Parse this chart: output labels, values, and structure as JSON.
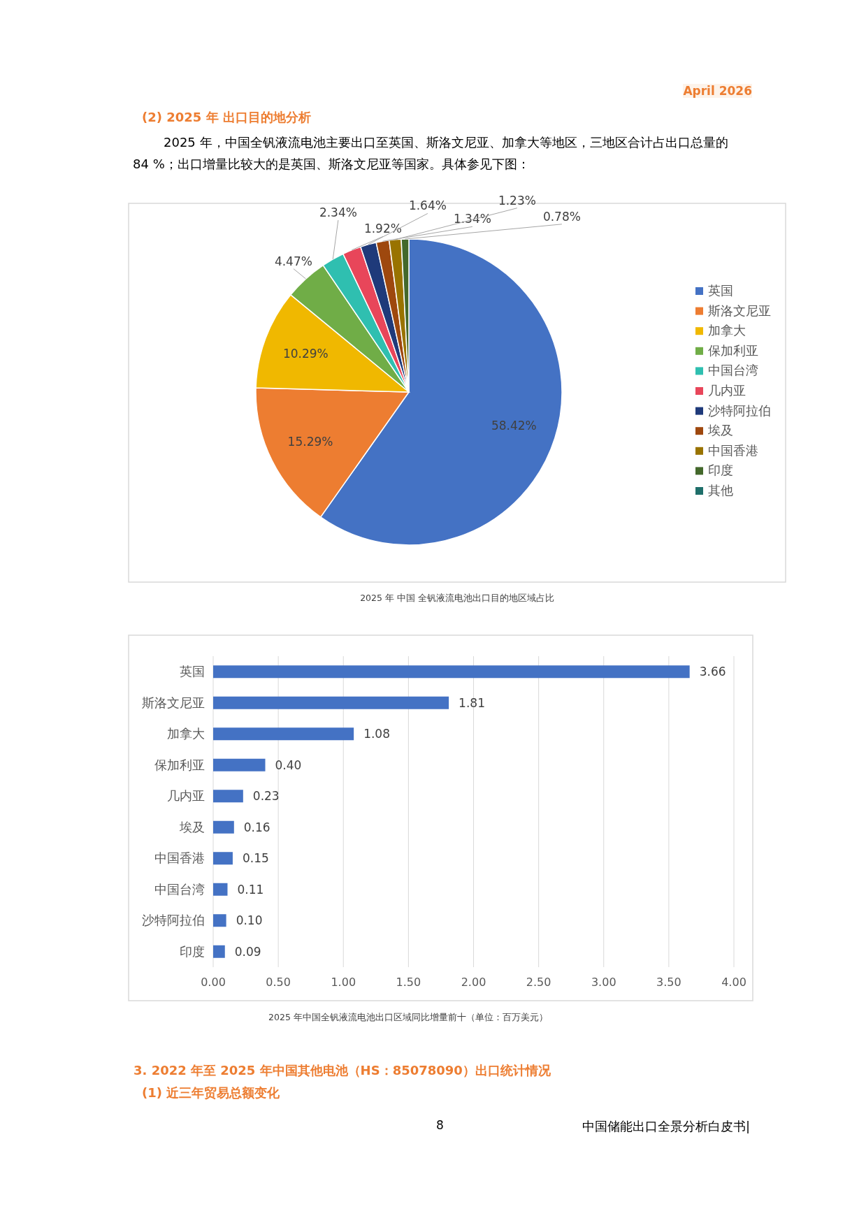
{
  "chart_data": [
    {
      "type": "pie",
      "title": "2025 年 中国 全钒液流电池出口目的地区域占比",
      "legend": "right",
      "annotations": [
        "April 2026",
        "(2) 2025 年 出口目的地分析",
        "2025 年，中国全钒液流电池主要出口至英国、斯洛文尼亚、加拿大等地区，三地区合计占出口总量的 84 %；出口增量比较大的是英国、斯洛文尼亚等国家。具体参见下图："
      ],
      "categories": [
        "英国",
        "斯洛文尼亚",
        "加拿大",
        "保加利亚",
        "中国台湾",
        "几内亚",
        "沙特阿拉伯",
        "埃及",
        "中国香港",
        "印度",
        "其他"
      ],
      "values": [
        58.42,
        15.29,
        10.29,
        4.47,
        2.34,
        1.92,
        1.64,
        1.34,
        1.23,
        0.78,
        null
      ],
      "value_labels": [
        "58.42%",
        "15.29%",
        "10.29%",
        "4.47%",
        "2.34%",
        "1.92%",
        "1.64%",
        "1.34%",
        "1.23%",
        "0.78%",
        null
      ],
      "colors": [
        "#4472c4",
        "#ed7d31",
        "#f0b800",
        "#70ad47",
        "#2fbfb0",
        "#e8465a",
        "#1f3a7a",
        "#9e480e",
        "#997300",
        "#43682b",
        "#1f6f6a"
      ]
    },
    {
      "type": "bar",
      "orientation": "horizontal",
      "title": "2025 年中国全钒液流电池出口区域同比增量前十（单位：百万美元）",
      "annotations": [
        "3. 2022 年至 2025 年中国其他电池（HS：85078090）出口统计情况",
        "(1) 近三年贸易总额变化",
        "8",
        "中国储能出口全景分析白皮书|"
      ],
      "categories": [
        "英国",
        "斯洛文尼亚",
        "加拿大",
        "保加利亚",
        "几内亚",
        "埃及",
        "中国香港",
        "中国台湾",
        "沙特阿拉伯",
        "印度"
      ],
      "values": [
        3.66,
        1.81,
        1.08,
        0.4,
        0.23,
        0.16,
        0.15,
        0.11,
        0.1,
        0.09
      ],
      "value_labels": [
        "3.66",
        "1.81",
        "1.08",
        "0.40",
        "0.23",
        "0.16",
        "0.15",
        "0.11",
        "0.10",
        "0.09"
      ],
      "color": "#4472c4",
      "xlim": [
        0,
        4
      ],
      "xticks": [
        {
          "value": 0,
          "label": "0.00"
        },
        {
          "value": 0.5,
          "label": "0.50"
        },
        {
          "value": 1,
          "label": "1.00"
        },
        {
          "value": 1.5,
          "label": "1.50"
        },
        {
          "value": 2,
          "label": "2.00"
        },
        {
          "value": 2.5,
          "label": "2.50"
        },
        {
          "value": 3,
          "label": "3.00"
        },
        {
          "value": 3.5,
          "label": "3.50"
        },
        {
          "value": 4,
          "label": "4.00"
        }
      ],
      "grid": "x"
    }
  ]
}
